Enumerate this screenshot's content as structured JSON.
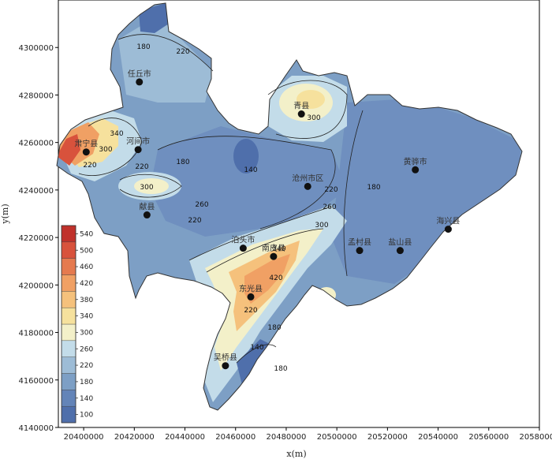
{
  "chart_data": {
    "type": "contour-map",
    "xlabel": "x(m)",
    "ylabel": "y(m)",
    "xlim": [
      20390000,
      20580000
    ],
    "ylim": [
      4140000,
      4320000
    ],
    "x_ticks": [
      "20400000",
      "20420000",
      "20440000",
      "20460000",
      "20480000",
      "20500000",
      "20520000",
      "20540000",
      "20560000",
      "20580000"
    ],
    "y_ticks": [
      "4140000",
      "4160000",
      "4180000",
      "4200000",
      "4220000",
      "4240000",
      "4260000",
      "4280000",
      "4300000"
    ],
    "legend": {
      "values": [
        "100",
        "140",
        "180",
        "220",
        "260",
        "300",
        "340",
        "380",
        "420",
        "460",
        "500",
        "540"
      ],
      "colors": [
        "#4f6fab",
        "#6384b8",
        "#7d9fc5",
        "#9dbcd6",
        "#c3dce9",
        "#f3f0c9",
        "#f6e19d",
        "#f5c17c",
        "#f0a064",
        "#e57a4f",
        "#d8523c",
        "#c0312b"
      ]
    },
    "contour_labels": [
      "180",
      "220",
      "340",
      "300",
      "220",
      "220",
      "180",
      "300",
      "260",
      "220",
      "140",
      "180",
      "220",
      "260",
      "300",
      "340",
      "420",
      "220",
      "180",
      "140",
      "180",
      "300"
    ],
    "cities": [
      {
        "name": "任丘市",
        "x": 20422000,
        "y": 4285500
      },
      {
        "name": "肃宁县",
        "x": 20401000,
        "y": 4256000
      },
      {
        "name": "河间市",
        "x": 20421500,
        "y": 4257000
      },
      {
        "name": "青县",
        "x": 20486000,
        "y": 4272000
      },
      {
        "name": "献县",
        "x": 20425000,
        "y": 4229500
      },
      {
        "name": "沧州市区",
        "x": 20488500,
        "y": 4241500
      },
      {
        "name": "黄骅市",
        "x": 20531000,
        "y": 4248500
      },
      {
        "name": "海兴县",
        "x": 20544000,
        "y": 4223500
      },
      {
        "name": "泊头市",
        "x": 20463000,
        "y": 4215500
      },
      {
        "name": "南皮县",
        "x": 20475000,
        "y": 4212000
      },
      {
        "name": "孟村县",
        "x": 20509000,
        "y": 4214500
      },
      {
        "name": "盐山县",
        "x": 20525000,
        "y": 4214500
      },
      {
        "name": "东光县",
        "x": 20466000,
        "y": 4195000
      },
      {
        "name": "吴桥县",
        "x": 20456000,
        "y": 4166000
      }
    ]
  }
}
